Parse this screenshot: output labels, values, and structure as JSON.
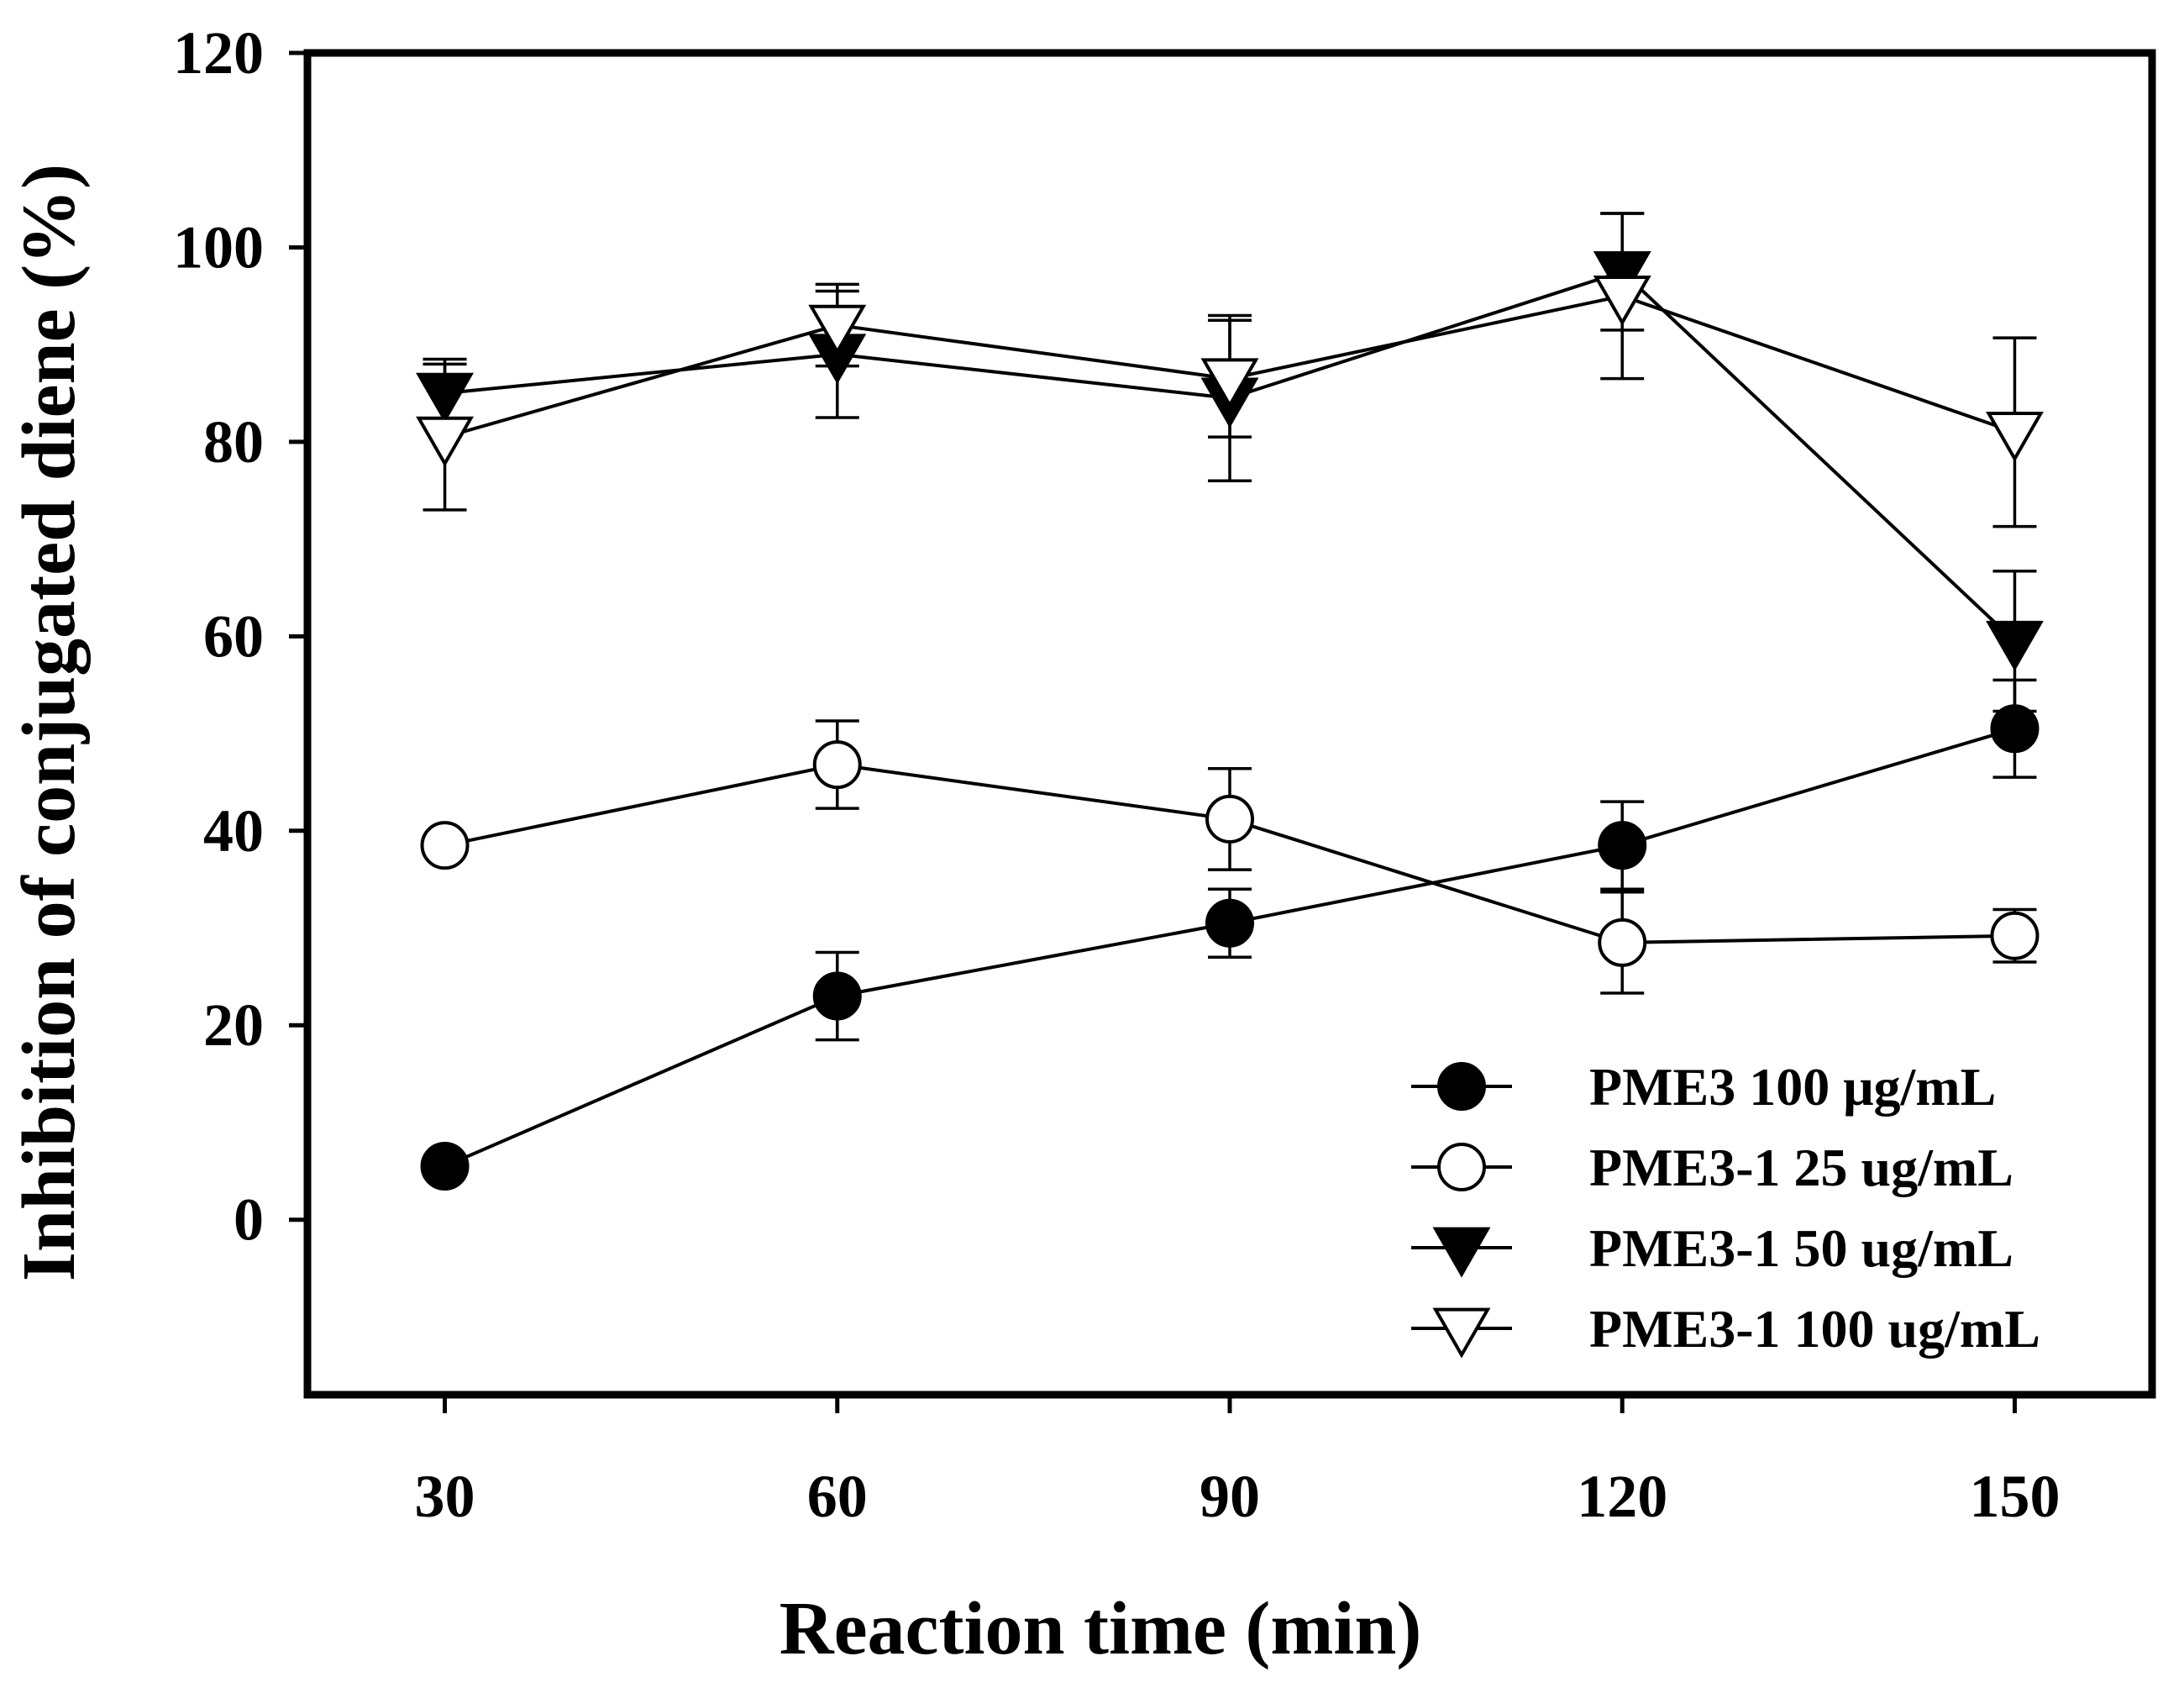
{
  "chart_data": {
    "type": "line",
    "title": "",
    "xlabel": "Reaction time (min)",
    "ylabel": "Inhibition of conjugated diene (%)",
    "x": [
      30,
      60,
      90,
      120,
      150
    ],
    "x_ticks": [
      "30",
      "60",
      "90",
      "120",
      "150"
    ],
    "y_ticks": [
      "0",
      "20",
      "40",
      "60",
      "80",
      "100",
      "120"
    ],
    "y_tick_values": [
      0,
      20,
      40,
      60,
      80,
      100,
      120
    ],
    "xlim": [
      19.5,
      160.5
    ],
    "ylim": [
      -18,
      120
    ],
    "grid": false,
    "legend_position": "bottom-right",
    "series": [
      {
        "name": "PME3 100 μg/mL",
        "marker": "circle-filled",
        "values": [
          5.5,
          23,
          30.5,
          38.5,
          50.5
        ],
        "errors": [
          0,
          4.5,
          3.5,
          4.5,
          5
        ]
      },
      {
        "name": "PME3-1 25 ug/mL",
        "marker": "circle-open",
        "values": [
          38.5,
          46.8,
          41.2,
          28.5,
          29.2
        ],
        "errors": [
          0,
          4.5,
          5.2,
          5.2,
          2.7
        ]
      },
      {
        "name": "PME3-1 50 ug/mL",
        "marker": "triangle-down-filled",
        "values": [
          85,
          89,
          84.5,
          97.5,
          59.5
        ],
        "errors": [
          3.5,
          6.5,
          8.5,
          6,
          7.2
        ]
      },
      {
        "name": "PME3-1 100 ug/mL",
        "marker": "triangle-down-open",
        "values": [
          80.5,
          92,
          86.5,
          95,
          81
        ],
        "errors": [
          7.5,
          4.2,
          6,
          8.5,
          9.7
        ]
      }
    ]
  }
}
